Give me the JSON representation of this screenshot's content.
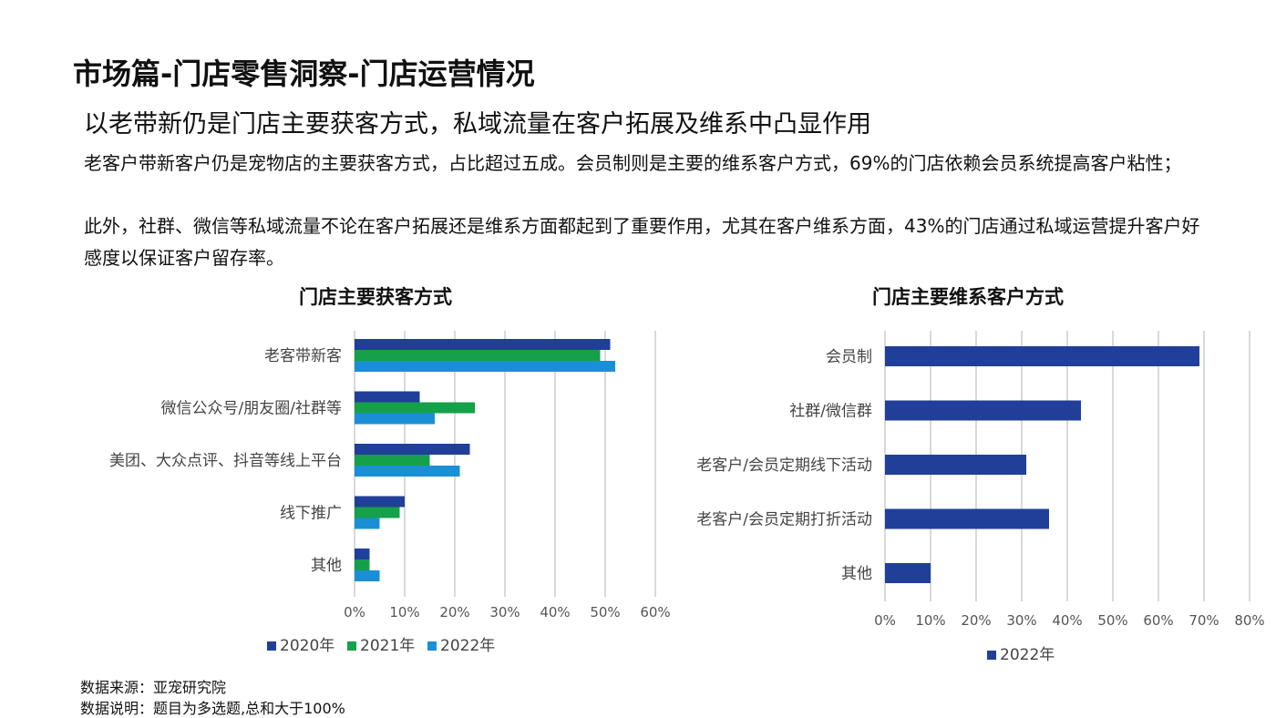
{
  "header": {
    "title": "市场篇-门店零售洞察-门店运营情况",
    "subtitle": "以老带新仍是门店主要获客方式，私域流量在客户拓展及维系中凸显作用",
    "paragraph1": "老客户带新客户仍是宠物店的主要获客方式，占比超过五成。会员制则是主要的维系客户方式，69%的门店依赖会员系统提高客户粘性；",
    "paragraph2": "此外，社群、微信等私域流量不论在客户拓展还是维系方面都起到了重要作用，尤其在客户维系方面，43%的门店通过私域运营提升客户好感度以保证客户留存率。"
  },
  "footer": {
    "source": "数据来源：亚宠研究院",
    "note": "数据说明：题目为多选题,总和大于100%"
  },
  "colors": {
    "s2020": "#1f3f99",
    "s2021": "#16a04a",
    "s2022": "#1b8fd6",
    "grid": "#d9d9d9"
  },
  "chart_data": [
    {
      "type": "bar",
      "orientation": "horizontal",
      "title": "门店主要获客方式",
      "categories": [
        "老客带新客",
        "微信公众号/朋友圈/社群等",
        "美团、大众点评、抖音等线上平台",
        "线下推广",
        "其他"
      ],
      "series": [
        {
          "name": "2020年",
          "values": [
            51,
            13,
            23,
            10,
            3
          ]
        },
        {
          "name": "2021年",
          "values": [
            49,
            24,
            15,
            9,
            3
          ]
        },
        {
          "name": "2022年",
          "values": [
            52,
            16,
            21,
            5,
            5
          ]
        }
      ],
      "xlim": [
        0,
        60
      ],
      "x_ticks": [
        "0%",
        "10%",
        "20%",
        "30%",
        "40%",
        "50%",
        "60%"
      ],
      "grid": true,
      "legend": "bottom"
    },
    {
      "type": "bar",
      "orientation": "horizontal",
      "title": "门店主要维系客户方式",
      "categories": [
        "会员制",
        "社群/微信群",
        "老客户/会员定期线下活动",
        "老客户/会员定期打折活动",
        "其他"
      ],
      "series": [
        {
          "name": "2022年",
          "values": [
            69,
            43,
            31,
            36,
            10
          ]
        }
      ],
      "xlim": [
        0,
        80
      ],
      "x_ticks": [
        "0%",
        "10%",
        "20%",
        "30%",
        "40%",
        "50%",
        "60%",
        "70%",
        "80%"
      ],
      "grid": true,
      "legend": "bottom"
    }
  ]
}
